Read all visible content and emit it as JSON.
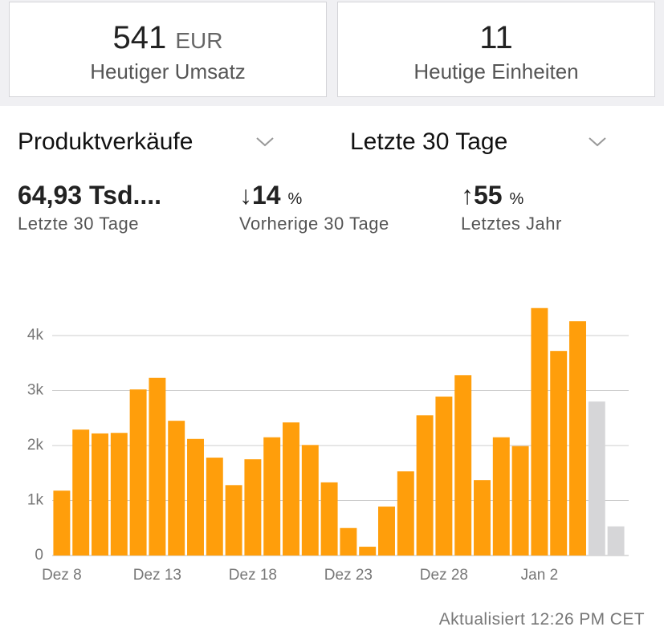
{
  "header_cards": [
    {
      "value": "541",
      "unit": "EUR",
      "label": "Heutiger Umsatz"
    },
    {
      "value": "11",
      "label": "Heutige Einheiten"
    }
  ],
  "selectors": [
    "Produktverkäufe",
    "Letzte 30 Tage"
  ],
  "stats": [
    {
      "value": "64,93 Tsd....",
      "label": "Letzte 30 Tage"
    },
    {
      "arrow": "↓",
      "value": "14",
      "unit": "%",
      "label": "Vorherige 30 Tage"
    },
    {
      "arrow": "↑",
      "value": "55",
      "unit": "%",
      "label": "Letztes Jahr"
    }
  ],
  "chart_data": {
    "type": "bar",
    "categories": [
      "Dez 8",
      null,
      null,
      null,
      null,
      "Dez 13",
      null,
      null,
      null,
      null,
      "Dez 18",
      null,
      null,
      null,
      null,
      "Dez 23",
      null,
      null,
      null,
      null,
      "Dez 28",
      null,
      null,
      null,
      null,
      "Jan 2",
      null,
      null,
      null,
      null
    ],
    "values": [
      1180,
      2290,
      2220,
      2230,
      3020,
      3230,
      2450,
      2120,
      1780,
      1280,
      1750,
      2150,
      2420,
      2010,
      1330,
      500,
      160,
      890,
      1530,
      2550,
      2890,
      3280,
      1370,
      2150,
      1990,
      4500,
      3720,
      4260,
      2800,
      530
    ],
    "colors": [
      "#ff9e0b",
      "#ff9e0b",
      "#ff9e0b",
      "#ff9e0b",
      "#ff9e0b",
      "#ff9e0b",
      "#ff9e0b",
      "#ff9e0b",
      "#ff9e0b",
      "#ff9e0b",
      "#ff9e0b",
      "#ff9e0b",
      "#ff9e0b",
      "#ff9e0b",
      "#ff9e0b",
      "#ff9e0b",
      "#ff9e0b",
      "#ff9e0b",
      "#ff9e0b",
      "#ff9e0b",
      "#ff9e0b",
      "#ff9e0b",
      "#ff9e0b",
      "#ff9e0b",
      "#ff9e0b",
      "#ff9e0b",
      "#ff9e0b",
      "#ff9e0b",
      "#d6d6d8",
      "#d6d6d8"
    ],
    "ylim": [
      0,
      4600
    ],
    "yticks": [
      0,
      {
        "value": 1000,
        "label": "1k"
      },
      {
        "value": 2000,
        "label": "2k"
      },
      {
        "value": 3000,
        "label": "3k"
      },
      {
        "value": 4000,
        "label": "4k"
      }
    ],
    "grid": true
  },
  "footer": "Aktualisiert 12:26 PM CET"
}
